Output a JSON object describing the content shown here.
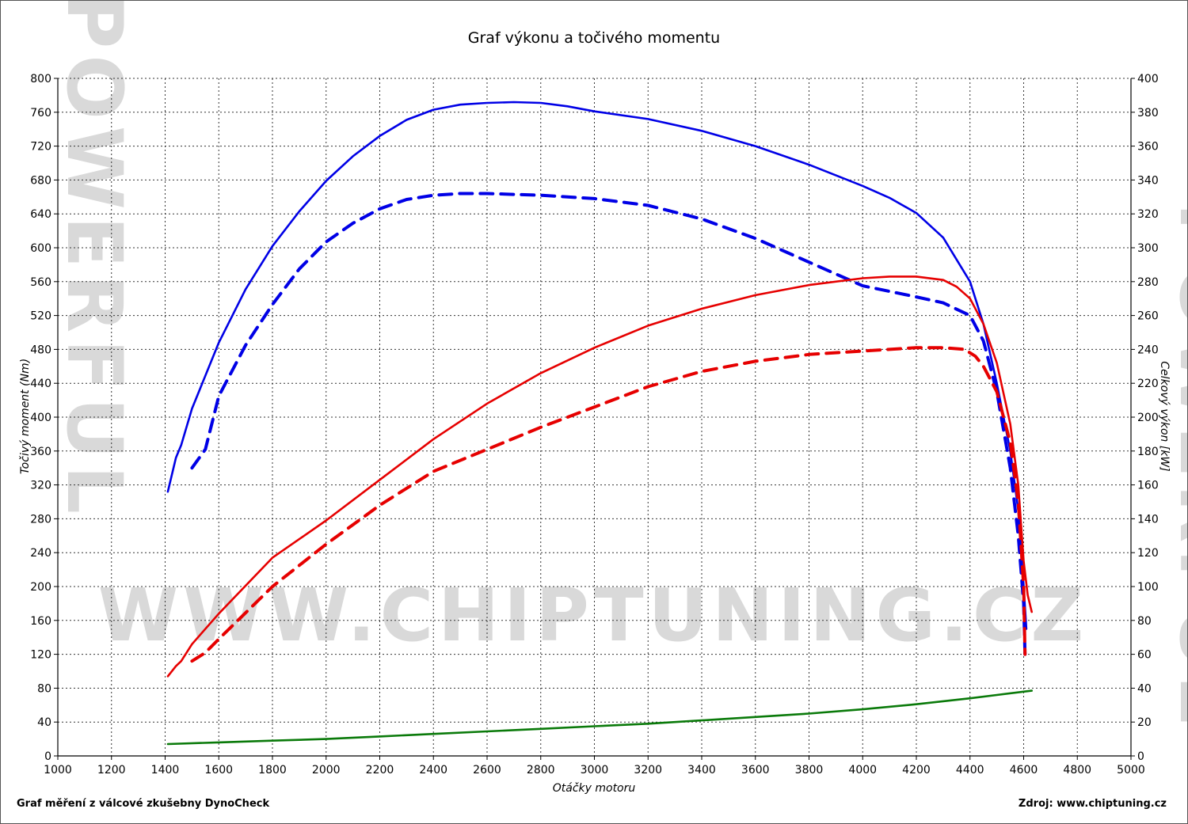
{
  "chart_data": {
    "type": "line",
    "title": "Graf výkonu a točivého momentu",
    "xlabel": "Otáčky motoru",
    "ylabel_left": "Točivý moment (Nm)",
    "ylabel_right": "Celkový výkon [kW]",
    "xlim": [
      1000,
      5000
    ],
    "ylim_left": [
      0,
      800
    ],
    "ylim_right": [
      0,
      400
    ],
    "x_ticks": [
      1000,
      1200,
      1400,
      1600,
      1800,
      2000,
      2200,
      2400,
      2600,
      2800,
      3000,
      3200,
      3400,
      3600,
      3800,
      4000,
      4200,
      4400,
      4600,
      4800,
      5000
    ],
    "y_left_ticks": [
      0,
      40,
      80,
      120,
      160,
      200,
      240,
      280,
      320,
      360,
      400,
      440,
      480,
      520,
      560,
      600,
      640,
      680,
      720,
      760,
      800
    ],
    "y_right_ticks": [
      0,
      20,
      40,
      60,
      80,
      100,
      120,
      140,
      160,
      180,
      200,
      220,
      240,
      260,
      280,
      300,
      320,
      340,
      360,
      380,
      400
    ],
    "grid": true,
    "series": [
      {
        "color": "#0000e6",
        "style": "solid",
        "axis": "left",
        "points": [
          [
            1410,
            312
          ],
          [
            1440,
            352
          ],
          [
            1460,
            367
          ],
          [
            1500,
            410
          ],
          [
            1600,
            488
          ],
          [
            1700,
            551
          ],
          [
            1800,
            602
          ],
          [
            1900,
            643
          ],
          [
            2000,
            679
          ],
          [
            2100,
            708
          ],
          [
            2200,
            732
          ],
          [
            2300,
            751
          ],
          [
            2400,
            763
          ],
          [
            2500,
            769
          ],
          [
            2600,
            771
          ],
          [
            2700,
            772
          ],
          [
            2800,
            771
          ],
          [
            2900,
            767
          ],
          [
            3000,
            761
          ],
          [
            3200,
            752
          ],
          [
            3400,
            738
          ],
          [
            3600,
            720
          ],
          [
            3800,
            698
          ],
          [
            4000,
            673
          ],
          [
            4100,
            659
          ],
          [
            4200,
            641
          ],
          [
            4300,
            612
          ],
          [
            4400,
            560
          ],
          [
            4450,
            510
          ],
          [
            4500,
            440
          ],
          [
            4550,
            360
          ],
          [
            4580,
            290
          ],
          [
            4600,
            200
          ],
          [
            4610,
            150
          ]
        ]
      },
      {
        "color": "#0000e6",
        "style": "dashed",
        "axis": "left",
        "points": [
          [
            1500,
            340
          ],
          [
            1550,
            362
          ],
          [
            1600,
            425
          ],
          [
            1700,
            485
          ],
          [
            1800,
            533
          ],
          [
            1900,
            575
          ],
          [
            2000,
            607
          ],
          [
            2100,
            629
          ],
          [
            2200,
            646
          ],
          [
            2300,
            657
          ],
          [
            2400,
            662
          ],
          [
            2500,
            664
          ],
          [
            2600,
            664
          ],
          [
            2800,
            662
          ],
          [
            3000,
            658
          ],
          [
            3200,
            650
          ],
          [
            3400,
            634
          ],
          [
            3600,
            611
          ],
          [
            3800,
            583
          ],
          [
            4000,
            555
          ],
          [
            4200,
            542
          ],
          [
            4300,
            535
          ],
          [
            4400,
            520
          ],
          [
            4450,
            490
          ],
          [
            4500,
            430
          ],
          [
            4550,
            340
          ],
          [
            4580,
            260
          ],
          [
            4600,
            180
          ],
          [
            4605,
            120
          ]
        ]
      },
      {
        "color": "#e60000",
        "style": "solid",
        "axis": "right",
        "points": [
          [
            1410,
            47
          ],
          [
            1440,
            53
          ],
          [
            1460,
            56
          ],
          [
            1500,
            66
          ],
          [
            1600,
            84
          ],
          [
            1800,
            117
          ],
          [
            2000,
            139
          ],
          [
            2200,
            163
          ],
          [
            2400,
            187
          ],
          [
            2600,
            208
          ],
          [
            2800,
            226
          ],
          [
            3000,
            241
          ],
          [
            3200,
            254
          ],
          [
            3400,
            264
          ],
          [
            3600,
            272
          ],
          [
            3800,
            278
          ],
          [
            4000,
            282
          ],
          [
            4100,
            283
          ],
          [
            4200,
            283
          ],
          [
            4300,
            281
          ],
          [
            4350,
            277
          ],
          [
            4400,
            270
          ],
          [
            4450,
            255
          ],
          [
            4500,
            232
          ],
          [
            4550,
            196
          ],
          [
            4580,
            160
          ],
          [
            4600,
            115
          ],
          [
            4615,
            95
          ],
          [
            4630,
            85
          ]
        ]
      },
      {
        "color": "#e60000",
        "style": "dashed",
        "axis": "right",
        "points": [
          [
            1500,
            56
          ],
          [
            1550,
            61
          ],
          [
            1600,
            69
          ],
          [
            1800,
            100
          ],
          [
            2000,
            125
          ],
          [
            2200,
            148
          ],
          [
            2400,
            168
          ],
          [
            2600,
            181
          ],
          [
            2800,
            194
          ],
          [
            3000,
            206
          ],
          [
            3200,
            218
          ],
          [
            3400,
            227
          ],
          [
            3600,
            233
          ],
          [
            3800,
            237
          ],
          [
            4000,
            239
          ],
          [
            4200,
            241
          ],
          [
            4300,
            241
          ],
          [
            4380,
            240
          ],
          [
            4420,
            236
          ],
          [
            4450,
            230
          ],
          [
            4500,
            215
          ],
          [
            4550,
            185
          ],
          [
            4580,
            150
          ],
          [
            4600,
            100
          ],
          [
            4605,
            60
          ]
        ]
      },
      {
        "color": "#0a7a0a",
        "style": "solid",
        "axis": "left",
        "points": [
          [
            1410,
            14
          ],
          [
            1600,
            16
          ],
          [
            1800,
            18
          ],
          [
            2000,
            20
          ],
          [
            2200,
            23
          ],
          [
            2400,
            26
          ],
          [
            2600,
            29
          ],
          [
            2800,
            32
          ],
          [
            3000,
            35
          ],
          [
            3200,
            38
          ],
          [
            3400,
            42
          ],
          [
            3600,
            46
          ],
          [
            3800,
            50
          ],
          [
            4000,
            55
          ],
          [
            4200,
            61
          ],
          [
            4400,
            68
          ],
          [
            4500,
            72
          ],
          [
            4630,
            77
          ]
        ]
      }
    ]
  },
  "footer": {
    "left": "Graf měření z válcové zkušebny DynoCheck",
    "right": "Zdroj: www.chiptuning.cz"
  },
  "watermark": {
    "text": "WWW.CHIPTUNING.CZ",
    "side": "POWERFUL"
  }
}
